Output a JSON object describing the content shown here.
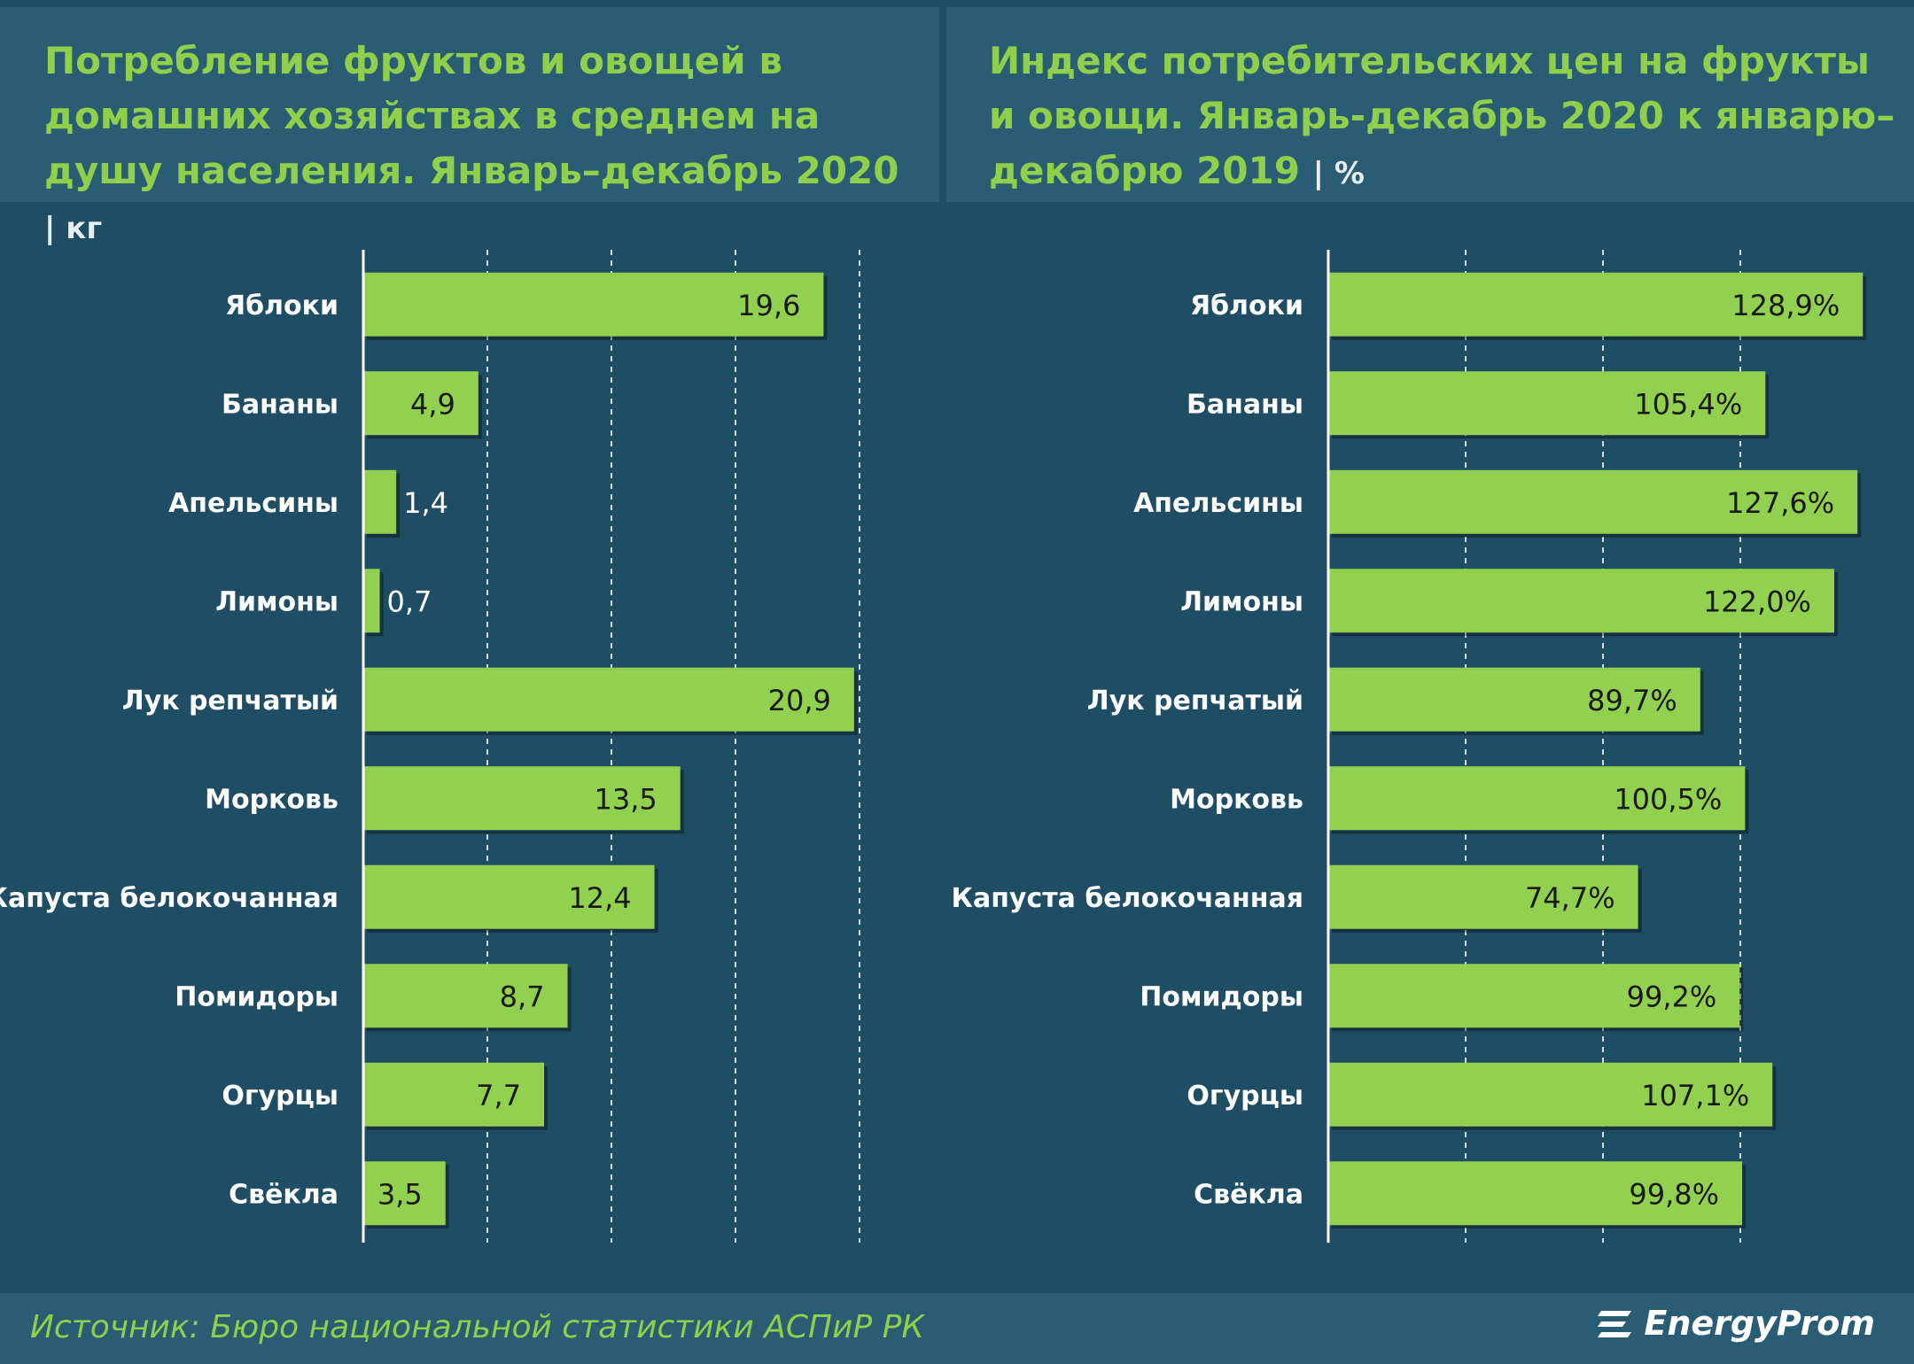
{
  "chart_data": [
    {
      "type": "bar",
      "orientation": "horizontal",
      "title": "Потребление фруктов и овощей в домашних хозяйствах в среднем на душу населения. Январь–декабрь 2020",
      "unit": "кг",
      "categories": [
        "Яблоки",
        "Бананы",
        "Апельсины",
        "Лимоны",
        "Лук репчатый",
        "Морковь",
        "Капуста белокочанная",
        "Помидоры",
        "Огурцы",
        "Свёкла"
      ],
      "values": [
        19.6,
        4.9,
        1.4,
        0.7,
        20.9,
        13.5,
        12.4,
        8.7,
        7.7,
        3.5
      ],
      "labels": [
        "19,6",
        "4,9",
        "1,4",
        "0,7",
        "20,9",
        "13,5",
        "12,4",
        "8,7",
        "7,7",
        "3,5"
      ],
      "xlim": [
        0,
        21
      ],
      "grid": true,
      "bar_color": "#92d050"
    },
    {
      "type": "bar",
      "orientation": "horizontal",
      "title": "Индекс потребительских цен на фрукты и овощи. Январь-декабрь 2020 к январю–декабрю 2019",
      "unit": "%",
      "categories": [
        "Яблоки",
        "Бананы",
        "Апельсины",
        "Лимоны",
        "Лук репчатый",
        "Морковь",
        "Капуста белокочанная",
        "Помидоры",
        "Огурцы",
        "Свёкла"
      ],
      "values": [
        128.9,
        105.4,
        127.6,
        122.0,
        89.7,
        100.5,
        74.7,
        99.2,
        107.1,
        99.8
      ],
      "labels": [
        "128,9%",
        "105,4%",
        "127,6%",
        "122,0%",
        "89,7%",
        "100,5%",
        "74,7%",
        "99,2%",
        "107,1%",
        "99,8%"
      ],
      "xlim": [
        0,
        130
      ],
      "grid": true,
      "bar_color": "#92d050"
    }
  ],
  "left_title": "Потребление фруктов и овощей в домашних хозяйствах в среднем на душу населения. Январь–декабрь 2020",
  "left_unit": "| кг",
  "right_title": "Индекс потребительских цен на фрукты и овощи. Январь-декабрь 2020 к январю–декабрю 2019",
  "right_unit": "| %",
  "source": "Источник: Бюро национальной  статистики АСПиР РК",
  "logo_text": "EnergyProm",
  "logo_icon": "energyprom-logo-icon",
  "colors": {
    "title": "#8fcf4c",
    "bar": "#92d050",
    "background": "#1f4a60"
  }
}
